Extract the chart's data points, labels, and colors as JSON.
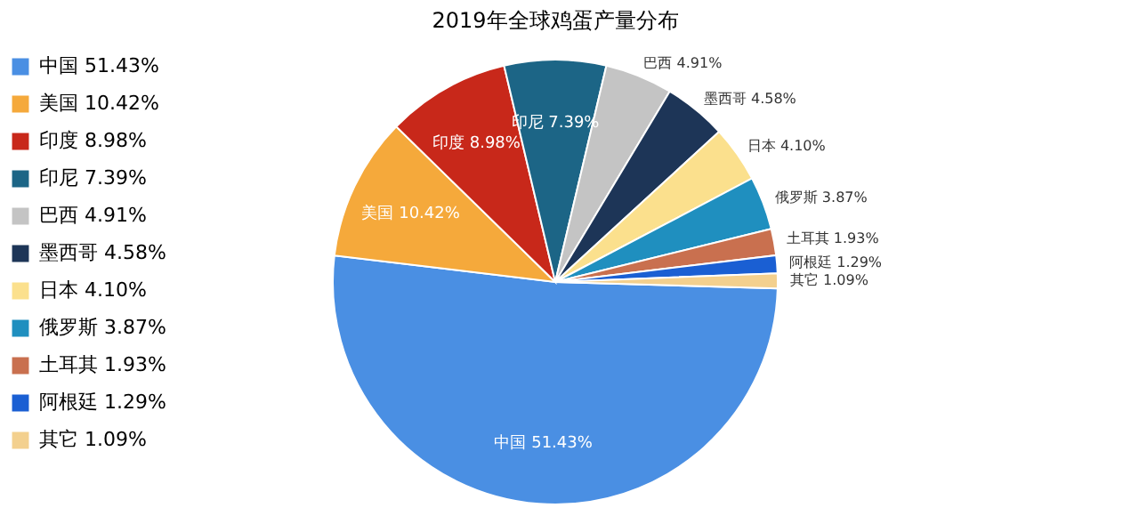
{
  "chart_data": {
    "type": "pie",
    "title": "2019年全球鸡蛋产量分布",
    "categories": [
      "中国",
      "美国",
      "印度",
      "印尼",
      "巴西",
      "墨西哥",
      "日本",
      "俄罗斯",
      "土耳其",
      "阿根廷",
      "其它"
    ],
    "values": [
      51.43,
      10.42,
      8.98,
      7.39,
      4.91,
      4.58,
      4.1,
      3.87,
      1.93,
      1.29,
      1.09
    ],
    "value_labels": [
      "51.43%",
      "10.42%",
      "8.98%",
      "7.39%",
      "4.91%",
      "4.58%",
      "4.10%",
      "3.87%",
      "1.93%",
      "1.29%",
      "1.09%"
    ],
    "colors": [
      "#4a8fe3",
      "#f5a93b",
      "#c8281a",
      "#1c6586",
      "#c4c4c4",
      "#1d3557",
      "#fbe08d",
      "#1f8fbf",
      "#c9704f",
      "#1a5fd3",
      "#f3d08e"
    ],
    "data_labels": true,
    "legend": "left"
  }
}
